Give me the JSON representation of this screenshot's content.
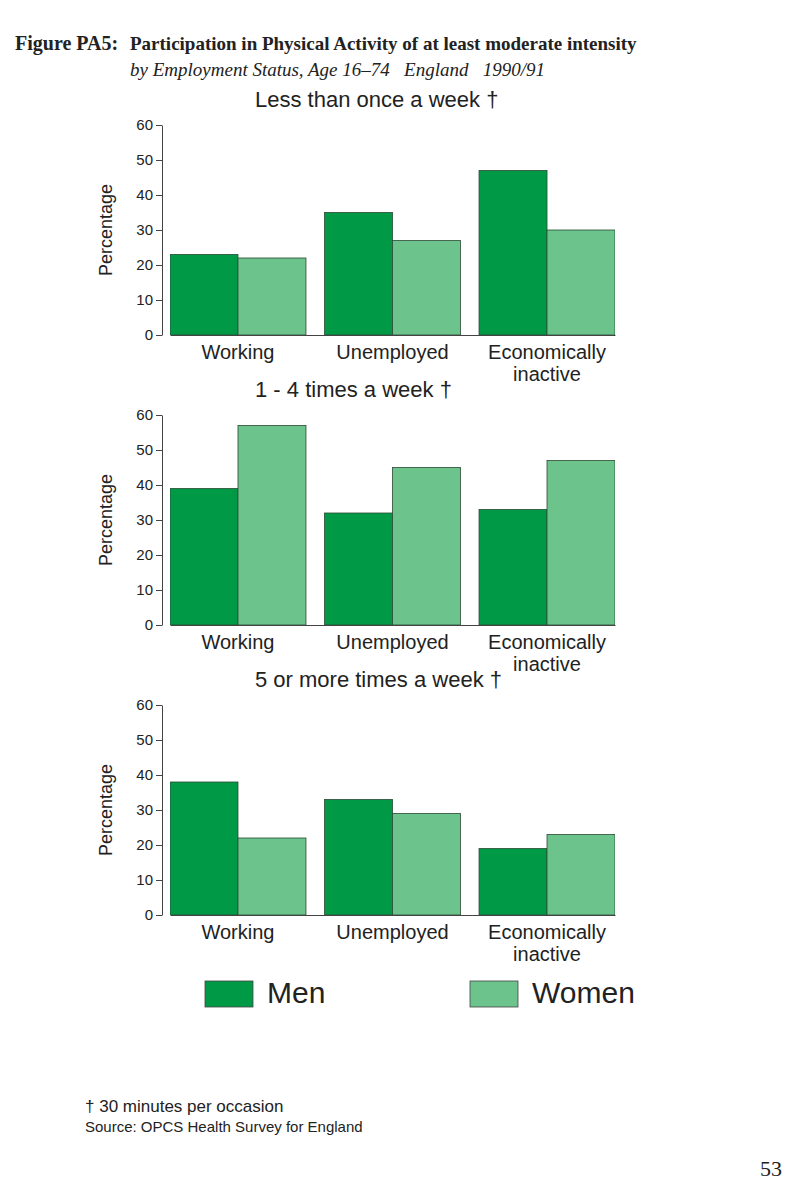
{
  "figure": {
    "label": "Figure PA5:",
    "title": "Participation in Physical Activity of at least moderate intensity",
    "subtitle": "by Employment Status, Age 16–74   England   1990/91",
    "footnote": "† 30 minutes per occasion",
    "source": "Source: OPCS Health Survey for England",
    "page": "53"
  },
  "chart_data": [
    {
      "type": "bar",
      "title": "Less than once a week †",
      "y_label": "Percentage",
      "categories": [
        "Working",
        "Unemployed",
        "Economically inactive"
      ],
      "series": [
        {
          "name": "Men",
          "color": "#009a46",
          "values": [
            23,
            35,
            47
          ]
        },
        {
          "name": "Women",
          "color": "#6cc48c",
          "values": [
            22,
            27,
            30
          ]
        }
      ],
      "ylim": [
        0,
        60
      ],
      "yticks": [
        0,
        10,
        20,
        30,
        40,
        50,
        60
      ]
    },
    {
      "type": "bar",
      "title": "1 - 4 times a week †",
      "y_label": "Percentage",
      "categories": [
        "Working",
        "Unemployed",
        "Economically inactive"
      ],
      "series": [
        {
          "name": "Men",
          "color": "#009a46",
          "values": [
            39,
            32,
            33
          ]
        },
        {
          "name": "Women",
          "color": "#6cc48c",
          "values": [
            57,
            45,
            47
          ]
        }
      ],
      "ylim": [
        0,
        60
      ],
      "yticks": [
        0,
        10,
        20,
        30,
        40,
        50,
        60
      ]
    },
    {
      "type": "bar",
      "title": "5 or more times a week †",
      "y_label": "Percentage",
      "categories": [
        "Working",
        "Unemployed",
        "Economically inactive"
      ],
      "series": [
        {
          "name": "Men",
          "color": "#009a46",
          "values": [
            38,
            33,
            19
          ]
        },
        {
          "name": "Women",
          "color": "#6cc48c",
          "values": [
            22,
            29,
            23
          ]
        }
      ],
      "ylim": [
        0,
        60
      ],
      "yticks": [
        0,
        10,
        20,
        30,
        40,
        50,
        60
      ],
      "legend": "bottom"
    }
  ]
}
